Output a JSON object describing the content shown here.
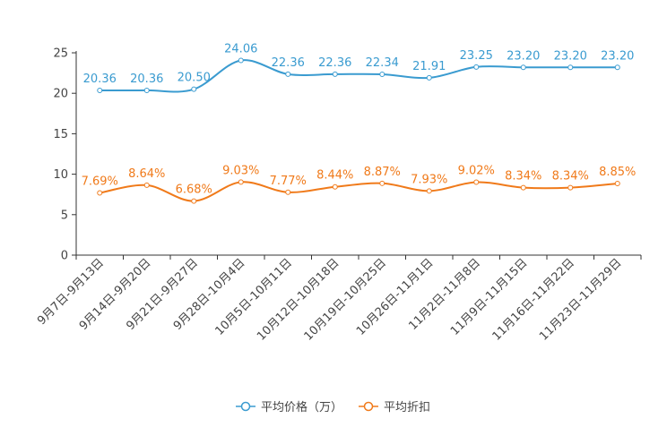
{
  "chart_data": {
    "type": "line",
    "categories": [
      "9月7日-9月13日",
      "9月14日-9月20日",
      "9月21日-9月27日",
      "9月28日-10月4日",
      "10月5日-10月11日",
      "10月12日-10月18日",
      "10月19日-10月25日",
      "10月26日-11月1日",
      "11月2日-11月8日",
      "11月9日-11月15日",
      "11月16日-11月22日",
      "11月23日-11月29日"
    ],
    "series": [
      {
        "name": "平均价格（万）",
        "color": "#3a9bd0",
        "values": [
          20.36,
          20.36,
          20.5,
          24.06,
          22.36,
          22.36,
          22.34,
          21.91,
          23.25,
          23.2,
          23.2,
          23.2
        ],
        "labels": [
          "20.36",
          "20.36",
          "20.50",
          "24.06",
          "22.36",
          "22.36",
          "22.34",
          "21.91",
          "23.25",
          "23.20",
          "23.20",
          "23.20"
        ]
      },
      {
        "name": "平均折扣",
        "color": "#f07a1a",
        "values": [
          7.69,
          8.64,
          6.68,
          9.03,
          7.77,
          8.44,
          8.87,
          7.93,
          9.02,
          8.34,
          8.34,
          8.85
        ],
        "labels": [
          "7.69%",
          "8.64%",
          "6.68%",
          "9.03%",
          "7.77%",
          "8.44%",
          "8.87%",
          "7.93%",
          "9.02%",
          "8.34%",
          "8.34%",
          "8.85%"
        ]
      }
    ],
    "yticks": [
      "0",
      "5",
      "10",
      "15",
      "20",
      "25"
    ],
    "ylim": [
      0,
      25
    ],
    "title": "",
    "xlabel": "",
    "ylabel": "",
    "grid": false,
    "legend": "bottom-center",
    "axis_color": "#333333"
  }
}
